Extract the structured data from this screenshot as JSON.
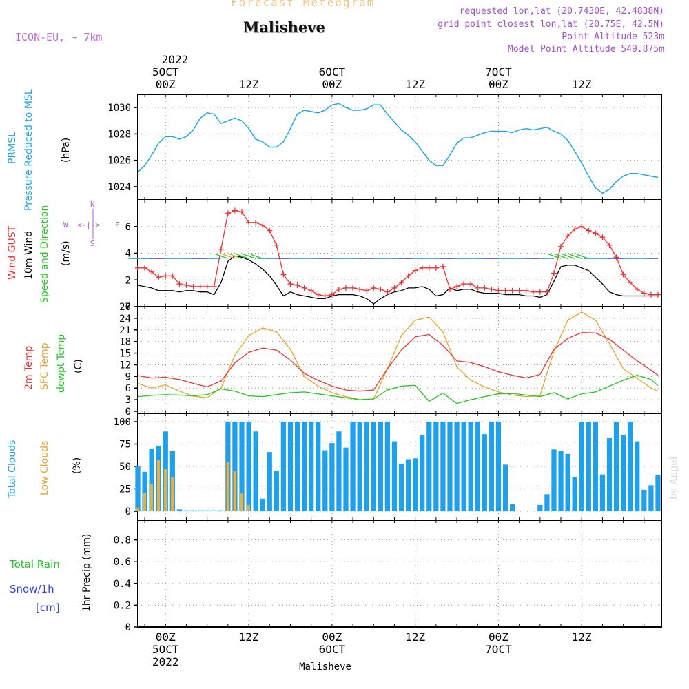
{
  "header": {
    "title": "Forecast Meteogram",
    "location": "Malisheve",
    "model": "ICON-EU, ~ 7km",
    "info": [
      "requested lon,lat (20.7430E, 42.4838N)",
      "grid point closest lon,lat (20.75E, 42.5N)",
      "Point Altitude 523m",
      "Model Point Altitude 549.875m"
    ]
  },
  "top_axis": {
    "year": "2022",
    "ticks": [
      {
        "day": "5OCT",
        "hour": "00Z"
      },
      {
        "day": "",
        "hour": "12Z"
      },
      {
        "day": "6OCT",
        "hour": "00Z"
      },
      {
        "day": "",
        "hour": "12Z"
      },
      {
        "day": "7OCT",
        "hour": "00Z"
      },
      {
        "day": "",
        "hour": "12Z"
      }
    ]
  },
  "bottom_axis": {
    "hours": [
      "00Z",
      "12Z",
      "00Z",
      "12Z",
      "00Z",
      "12Z"
    ],
    "days": [
      "5OCT",
      "6OCT",
      "7OCT"
    ],
    "year": "2022",
    "footer": "Malisheve"
  },
  "panel_labels": {
    "pressure": {
      "line1": "PRMSL",
      "line2": "Pressure Reduced to MSL",
      "unit": "(hPa)"
    },
    "wind": {
      "gust": "Wind GUST",
      "wind10": "10m Wind",
      "speed": "Speed and Direction",
      "unit": "(m/s)",
      "compass_n": "N",
      "compass_s": "S",
      "compass_w": "W",
      "compass_e": "E",
      "compass_arrows": "<-|->"
    },
    "temp": {
      "t2m": "2m Temp",
      "sfc": "SFC Temp",
      "dewpt": "dewpt Temp",
      "unit": "(C)"
    },
    "clouds": {
      "total": "Total Clouds",
      "low": "Low Clouds",
      "unit": "(%)"
    },
    "precip": {
      "rain": "Total  Rain",
      "snow": "Snow/1h",
      "snow_unit": "[cm]",
      "unit": "1hr Precip (mm)"
    }
  },
  "signature": "by Angel",
  "colors": {
    "pressure": "#1ea7e8",
    "gust": "#ee3333",
    "wind": "#000000",
    "t2m": "#ee3333",
    "sfc": "#e8a22c",
    "dewpt": "#1ec81e",
    "total_clouds": "#1ea0ec",
    "low_clouds": "#e8b040",
    "pressure_label": "#1ea7e8",
    "gust_label": "#ee3333",
    "speed_label": "#1ec81e",
    "sfc_label": "#e8a22c",
    "dewpt_label": "#1ec81e",
    "rain_label": "#1ec81e",
    "snow_label": "#3344ee",
    "compass": "#b05be0"
  },
  "chart_data": [
    {
      "type": "line",
      "name": "pressure",
      "xlabel": "",
      "ylabel": "(hPa)",
      "x": [
        -4,
        -3,
        -2,
        -1,
        0,
        1,
        2,
        3,
        4,
        5,
        6,
        7,
        8,
        9,
        10,
        11,
        12,
        13,
        14,
        15,
        16,
        17,
        18,
        19,
        20,
        21,
        22,
        23,
        24,
        25,
        26,
        27,
        28,
        29,
        30,
        31,
        32,
        33,
        34,
        35,
        36,
        37,
        38,
        39,
        40,
        41,
        42,
        43,
        44,
        45,
        46,
        47,
        48,
        49,
        50,
        51,
        52,
        53,
        54,
        55,
        56,
        57,
        58,
        59,
        60,
        61,
        62,
        63,
        64,
        65,
        66,
        67,
        68,
        69,
        70,
        71
      ],
      "y": [
        1025.1,
        1025.6,
        1026.4,
        1027.3,
        1027.8,
        1027.8,
        1027.6,
        1027.8,
        1028.3,
        1029.2,
        1029.6,
        1029.5,
        1028.8,
        1029.0,
        1029.2,
        1029.0,
        1028.4,
        1027.6,
        1027.4,
        1027.0,
        1027.0,
        1027.4,
        1028.4,
        1029.5,
        1029.8,
        1029.7,
        1029.6,
        1029.8,
        1030.2,
        1030.3,
        1030.0,
        1029.8,
        1029.8,
        1029.9,
        1030.2,
        1030.2,
        1029.5,
        1028.9,
        1028.3,
        1027.9,
        1027.4,
        1026.7,
        1026.0,
        1025.6,
        1025.6,
        1026.4,
        1027.3,
        1027.7,
        1027.7,
        1027.9,
        1028.1,
        1028.2,
        1028.2,
        1028.2,
        1028.1,
        1028.3,
        1028.4,
        1028.3,
        1028.4,
        1028.5,
        1028.2,
        1028.0,
        1027.5,
        1026.7,
        1025.8,
        1024.8,
        1023.9,
        1023.5,
        1023.8,
        1024.4,
        1024.8,
        1025.0,
        1025.0,
        1024.9,
        1024.8,
        1024.7
      ],
      "ylim": [
        1023,
        1031
      ],
      "yticks": [
        1024,
        1026,
        1028,
        1030
      ]
    },
    {
      "type": "line",
      "name": "wind",
      "xlabel": "",
      "ylabel": "(m/s)",
      "x": [
        -4,
        -3,
        -2,
        -1,
        0,
        1,
        2,
        3,
        4,
        5,
        6,
        7,
        8,
        9,
        10,
        11,
        12,
        13,
        14,
        15,
        16,
        17,
        18,
        19,
        20,
        21,
        22,
        23,
        24,
        25,
        26,
        27,
        28,
        29,
        30,
        31,
        32,
        33,
        34,
        35,
        36,
        37,
        38,
        39,
        40,
        41,
        42,
        43,
        44,
        45,
        46,
        47,
        48,
        49,
        50,
        51,
        52,
        53,
        54,
        55,
        56,
        57,
        58,
        59,
        60,
        61,
        62,
        63,
        64,
        65,
        66,
        67,
        68,
        69,
        70,
        71
      ],
      "series": [
        {
          "name": "Wind GUST",
          "values": [
            2.9,
            2.9,
            2.6,
            2.2,
            2.3,
            2.3,
            1.7,
            1.6,
            1.5,
            1.5,
            1.5,
            1.5,
            4.3,
            7.0,
            7.2,
            7.1,
            6.3,
            6.3,
            6.1,
            5.7,
            4.6,
            2.4,
            1.7,
            1.6,
            1.4,
            1.2,
            0.9,
            0.8,
            0.9,
            1.3,
            1.4,
            1.4,
            1.3,
            1.2,
            1.4,
            1.3,
            1.1,
            1.4,
            1.8,
            2.3,
            2.7,
            2.9,
            2.9,
            2.9,
            3.0,
            1.3,
            1.5,
            1.7,
            1.7,
            1.4,
            1.4,
            1.3,
            1.2,
            1.2,
            1.2,
            1.2,
            1.2,
            1.1,
            1.1,
            1.1,
            2.5,
            4.5,
            5.3,
            5.8,
            6.0,
            5.7,
            5.5,
            5.2,
            4.6,
            3.7,
            2.4,
            1.8,
            1.3,
            1.0,
            0.9,
            0.9
          ]
        },
        {
          "name": "10m Wind",
          "values": [
            1.6,
            1.5,
            1.4,
            1.2,
            1.2,
            1.2,
            1.1,
            1.2,
            1.2,
            1.1,
            1.1,
            0.9,
            1.8,
            3.4,
            3.8,
            3.7,
            3.5,
            3.2,
            2.8,
            2.3,
            1.6,
            0.8,
            1.1,
            0.9,
            0.8,
            0.7,
            0.6,
            0.6,
            0.8,
            0.9,
            0.9,
            0.9,
            0.8,
            0.6,
            0.2,
            0.6,
            0.9,
            1.1,
            1.2,
            1.4,
            1.4,
            1.5,
            1.3,
            0.8,
            0.9,
            1.4,
            1.2,
            1.3,
            1.3,
            1.1,
            1.0,
            1.0,
            1.0,
            0.9,
            0.9,
            0.9,
            0.8,
            0.8,
            0.7,
            0.9,
            1.9,
            3.0,
            3.1,
            3.1,
            2.9,
            2.7,
            2.2,
            1.7,
            1.1,
            0.9,
            0.8,
            0.8,
            0.8,
            0.8,
            0.8,
            0.8
          ]
        }
      ],
      "ylim": [
        0,
        8
      ],
      "yticks": [
        0,
        2,
        4,
        6
      ]
    },
    {
      "type": "line",
      "name": "temperature",
      "xlabel": "",
      "ylabel": "(C)",
      "x": [
        -4,
        -2,
        0,
        2,
        4,
        6,
        8,
        10,
        12,
        14,
        16,
        18,
        20,
        22,
        24,
        26,
        28,
        30,
        32,
        34,
        36,
        38,
        40,
        42,
        44,
        46,
        48,
        50,
        52,
        54,
        56,
        58,
        60,
        62,
        64,
        66,
        68,
        70,
        71
      ],
      "series": [
        {
          "name": "2m Temp",
          "values": [
            9.2,
            8.6,
            8.8,
            8.2,
            7.2,
            6.3,
            7.8,
            12.5,
            15.2,
            16.3,
            15.8,
            13.2,
            9.8,
            8.0,
            6.5,
            5.5,
            5.2,
            5.5,
            11.0,
            15.8,
            19.2,
            19.8,
            17.0,
            13.0,
            12.6,
            11.5,
            10.2,
            9.3,
            8.6,
            9.5,
            16.0,
            18.8,
            20.3,
            20.2,
            18.6,
            15.8,
            13.0,
            10.6,
            9.3
          ]
        },
        {
          "name": "SFC Temp",
          "values": [
            7.2,
            6.0,
            6.8,
            5.2,
            3.9,
            3.5,
            6.0,
            14.5,
            19.5,
            21.5,
            20.5,
            16.0,
            9.0,
            6.5,
            4.8,
            3.8,
            3.0,
            3.2,
            11.0,
            19.5,
            23.5,
            24.3,
            20.5,
            11.5,
            8.0,
            6.3,
            5.0,
            4.2,
            3.8,
            4.0,
            15.5,
            23.5,
            25.6,
            23.5,
            17.5,
            11.0,
            8.5,
            6.0,
            5.2
          ]
        },
        {
          "name": "dewpt Temp",
          "values": [
            3.8,
            4.1,
            4.3,
            4.2,
            4.0,
            4.3,
            5.8,
            5.2,
            4.0,
            3.8,
            4.3,
            4.8,
            5.0,
            4.5,
            4.0,
            3.5,
            3.0,
            3.2,
            5.5,
            6.5,
            6.7,
            2.6,
            4.7,
            2.0,
            3.0,
            3.8,
            4.5,
            4.6,
            4.2,
            3.8,
            4.8,
            3.2,
            4.5,
            5.0,
            6.5,
            8.0,
            9.3,
            8.2,
            6.6
          ]
        }
      ],
      "ylim": [
        0,
        27
      ],
      "yticks": [
        0,
        3,
        6,
        9,
        12,
        15,
        18,
        21,
        24,
        27
      ]
    },
    {
      "type": "bar",
      "name": "clouds",
      "xlabel": "",
      "ylabel": "(%)",
      "x": [
        -4,
        -3,
        -2,
        -1,
        0,
        1,
        2,
        3,
        4,
        5,
        6,
        7,
        8,
        9,
        10,
        11,
        12,
        13,
        14,
        15,
        16,
        17,
        18,
        19,
        20,
        21,
        22,
        23,
        24,
        25,
        26,
        27,
        28,
        29,
        30,
        31,
        32,
        33,
        34,
        35,
        36,
        37,
        38,
        39,
        40,
        41,
        42,
        43,
        44,
        45,
        46,
        47,
        48,
        49,
        50,
        51,
        52,
        53,
        54,
        55,
        56,
        57,
        58,
        59,
        60,
        61,
        62,
        63,
        64,
        65,
        66,
        67,
        68,
        69,
        70,
        71
      ],
      "series": [
        {
          "name": "Total Clouds",
          "values": [
            50,
            44,
            70,
            73,
            89,
            67,
            2,
            1,
            1,
            1,
            1,
            1,
            1,
            100,
            100,
            100,
            100,
            89,
            14,
            66,
            45,
            100,
            100,
            100,
            100,
            100,
            100,
            68,
            76,
            89,
            71,
            100,
            100,
            100,
            100,
            100,
            100,
            78,
            53,
            58,
            59,
            85,
            100,
            100,
            100,
            100,
            100,
            100,
            100,
            100,
            86,
            100,
            100,
            52,
            8,
            0,
            0,
            0,
            7,
            19,
            69,
            67,
            64,
            38,
            100,
            100,
            100,
            41,
            82,
            100,
            85,
            100,
            78,
            24,
            29,
            40
          ]
        },
        {
          "name": "Low Clouds",
          "values": [
            4,
            20,
            30,
            57,
            47,
            38,
            0,
            0,
            0,
            0,
            0,
            0,
            0,
            55,
            45,
            20,
            7,
            1,
            0,
            0,
            0,
            0,
            0,
            0,
            0,
            0,
            0,
            0,
            0,
            0,
            0,
            0,
            0,
            0,
            0,
            0,
            0,
            0,
            0,
            0,
            0,
            0,
            0,
            0,
            0,
            0,
            0,
            0,
            0,
            0,
            0,
            0,
            0,
            0,
            0,
            0,
            0,
            0,
            0,
            0,
            0,
            0,
            0,
            0,
            0,
            0,
            0,
            0,
            0,
            0,
            0,
            0,
            0,
            0,
            0,
            0
          ]
        }
      ],
      "ylim": [
        0,
        100
      ],
      "yticks": [
        0,
        25,
        50,
        75,
        100
      ]
    },
    {
      "type": "bar",
      "name": "precipitation",
      "xlabel": "",
      "ylabel": "1hr Precip (mm)",
      "x": [
        -4,
        71
      ],
      "values": [
        0,
        0
      ],
      "ylim": [
        0,
        1
      ],
      "yticks": [
        0,
        0.2,
        0.4,
        0.6,
        0.8
      ]
    }
  ]
}
